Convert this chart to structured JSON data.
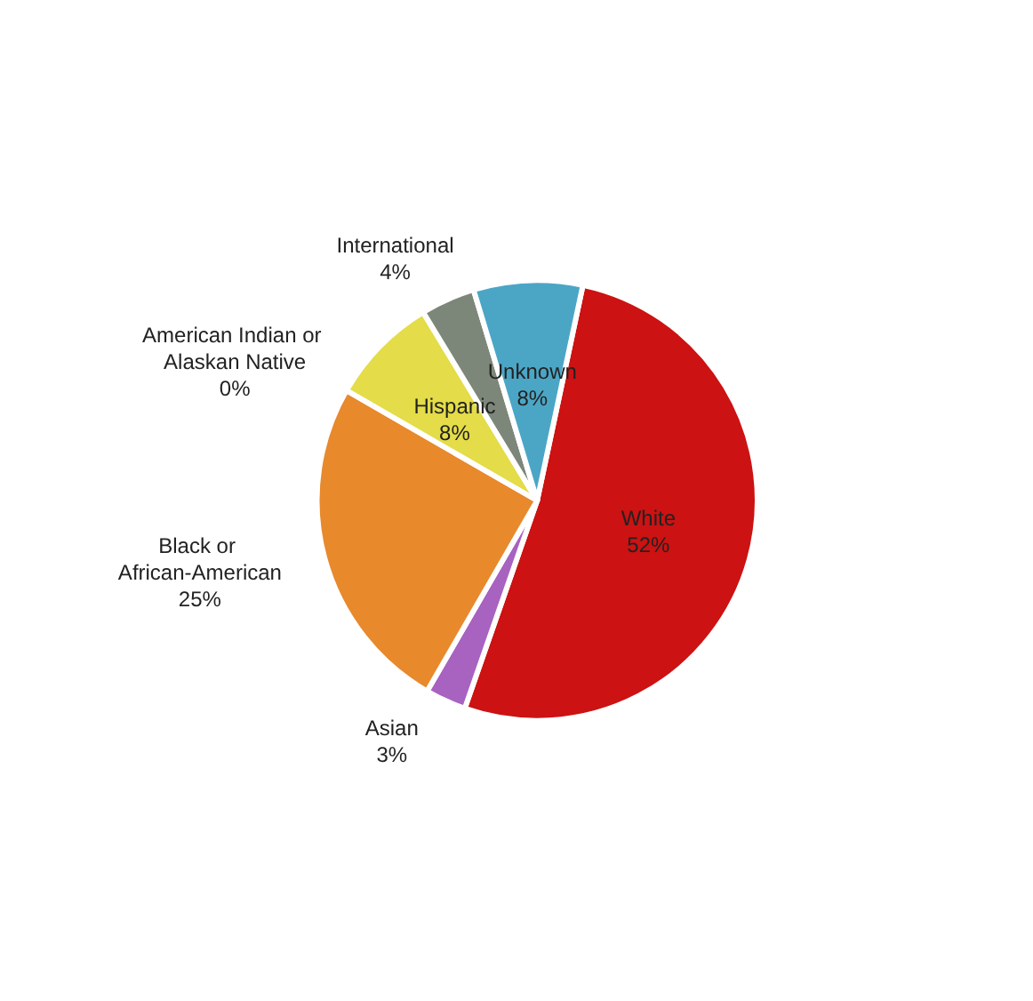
{
  "chart_data": {
    "type": "pie",
    "categories": [
      "White",
      "Asian",
      "Black or African-American",
      "American Indian or Alaskan Native",
      "Hispanic",
      "International",
      "Unknown"
    ],
    "values": [
      52,
      3,
      25,
      0,
      8,
      4,
      8
    ],
    "colors": [
      "#cc1212",
      "#a862c0",
      "#e8892c",
      "#1a1a1a",
      "#e4dc48",
      "#7d8779",
      "#4ba6c6"
    ],
    "value_labels": [
      "52%",
      "3%",
      "25%",
      "0%",
      "8%",
      "4%",
      "8%"
    ],
    "legend": false
  }
}
